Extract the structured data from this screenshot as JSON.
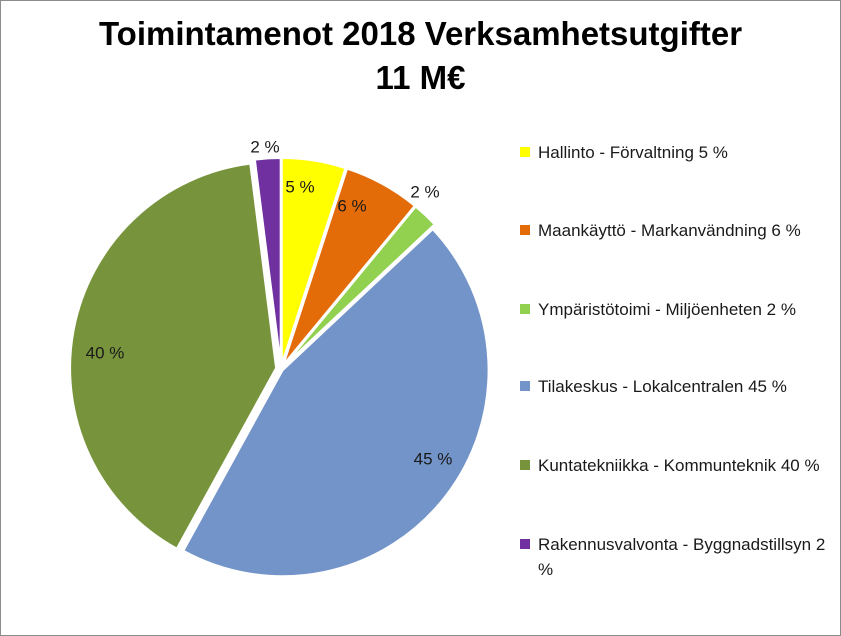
{
  "chart_data": {
    "type": "pie",
    "title": "Toimintamenot 2018 Verksamhetsutgifter",
    "subtitle": "11 M€",
    "slices": [
      {
        "name": "Hallinto - Förvaltning 5 %",
        "value": 5,
        "label": "5 %",
        "color": "#ffff00"
      },
      {
        "name": "Maankäyttö - Markanvändning 6 %",
        "value": 6,
        "label": "6 %",
        "color": "#e36c09"
      },
      {
        "name": "Ympäristötoimi  - Miljöenheten 2 %",
        "value": 2,
        "label": "2 %",
        "color": "#92d050"
      },
      {
        "name": "Tilakeskus  - Lokalcentralen 45 %",
        "value": 45,
        "label": "45 %",
        "color": "#7394c8"
      },
      {
        "name": "Kuntatekniikka - Kommunteknik 40 %",
        "value": 40,
        "label": "40 %",
        "color": "#77933c"
      },
      {
        "name": "Rakennusvalvonta - Byggnadstillsyn 2 %",
        "value": 2,
        "label": "2 %",
        "color": "#7030a0"
      }
    ],
    "legend_position": "right"
  }
}
